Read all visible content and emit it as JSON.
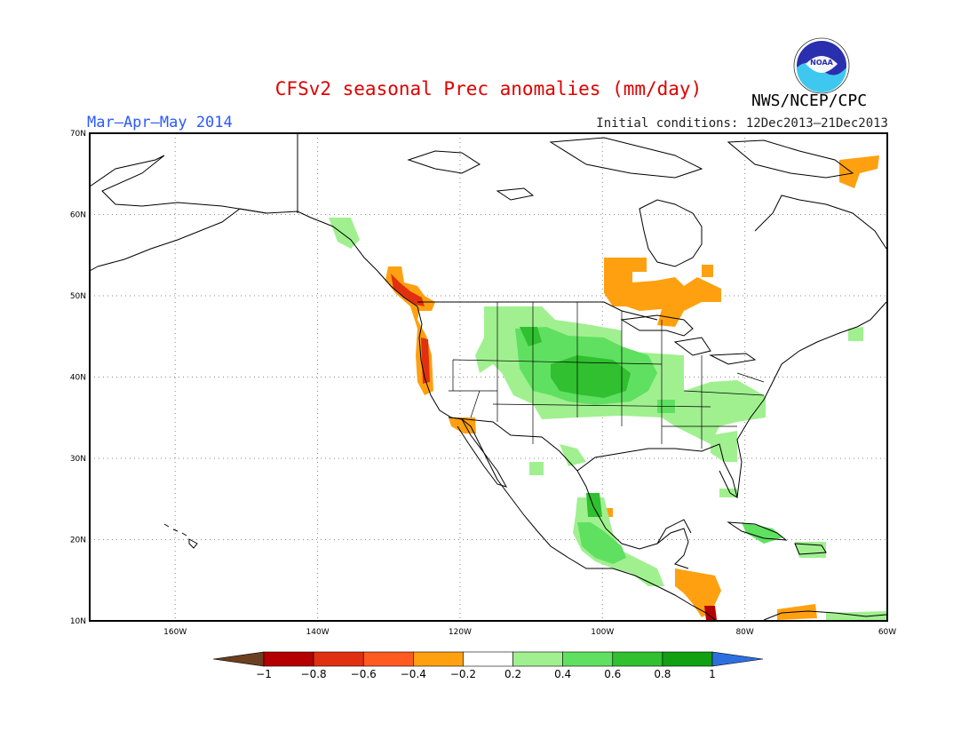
{
  "header": {
    "title": "CFSv2 seasonal Prec anomalies (mm/day)",
    "season": "Mar–Apr–May 2014",
    "initial_conditions": "Initial conditions: 12Dec2013–21Dec2013",
    "agency": "NWS/NCEP/CPC",
    "logo_icon": "noaa-logo-icon",
    "logo_text": "NOAA"
  },
  "map": {
    "lat_labels": [
      "70N",
      "60N",
      "50N",
      "40N",
      "30N",
      "20N",
      "10N"
    ],
    "lon_labels": [
      "160W",
      "140W",
      "120W",
      "100W",
      "80W",
      "60W"
    ],
    "lon_range": [
      -172,
      -60
    ],
    "lat_range": [
      10,
      70
    ]
  },
  "colorbar": {
    "labels": [
      "−1",
      "−0.8",
      "−0.6",
      "−0.4",
      "−0.2",
      "0.2",
      "0.4",
      "0.6",
      "0.8",
      "1"
    ],
    "colors": [
      "#6b3f1f",
      "#b40000",
      "#e03010",
      "#ff5a20",
      "#ffa010",
      "#ffffff",
      "#a0f090",
      "#60e060",
      "#30c030",
      "#10a010",
      "#2e6fe0"
    ]
  }
}
